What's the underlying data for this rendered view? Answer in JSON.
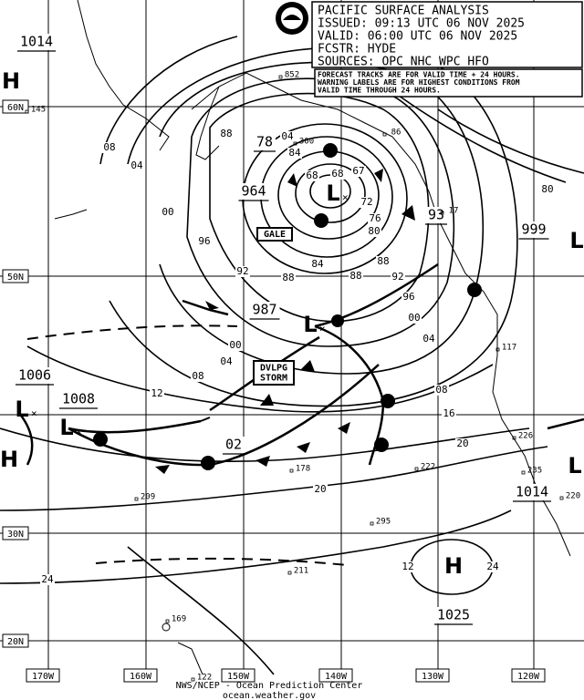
{
  "header": {
    "lines": [
      "PACIFIC SURFACE ANALYSIS",
      "ISSUED: 09:13 UTC 06 NOV 2025",
      "VALID: 06:00 UTC 06 NOV 2025",
      "FCSTR: HYDE",
      "SOURCES: OPC NHC WPC HFO"
    ]
  },
  "note": {
    "lines": [
      "FORECAST TRACKS ARE FOR VALID TIME + 24 HOURS.",
      "WARNING LABELS ARE FOR HIGHEST CONDITIONS FROM",
      "VALID TIME THROUGH 24 HOURS."
    ]
  },
  "latitudes": [
    "60N",
    "50N",
    "30N",
    "20N"
  ],
  "longitudes": [
    "170W",
    "160W",
    "150W",
    "140W",
    "130W",
    "120W"
  ],
  "centers": [
    "H",
    "L",
    "L",
    "L",
    "L",
    "L",
    "L",
    "H",
    "H"
  ],
  "pressures": [
    "1014",
    "78",
    "964",
    "93",
    "999",
    "987",
    "1006",
    "1008",
    "02",
    "1014",
    "1025"
  ],
  "warnings": [
    "GALE",
    "DVLPG STORM"
  ],
  "isobar_labels": [
    "08",
    "04",
    "00",
    "96",
    "92",
    "88",
    "84",
    "80",
    "76",
    "72",
    "68",
    "67",
    "88",
    "00",
    "04",
    "08",
    "12",
    "16",
    "20",
    "20",
    "24",
    "24",
    "12",
    "08",
    "04",
    "00",
    "96",
    "92",
    "88",
    "84",
    "80",
    "04",
    "88",
    "68"
  ],
  "stations": [
    "852",
    "145",
    "300",
    "178",
    "222",
    "209",
    "295",
    "117",
    "226",
    "235",
    "211",
    "169",
    "122",
    "220",
    "86",
    "17"
  ],
  "footer": {
    "lines": [
      "NWS/NCEP - Ocean Prediction Center",
      "ocean.weather.gov"
    ]
  }
}
